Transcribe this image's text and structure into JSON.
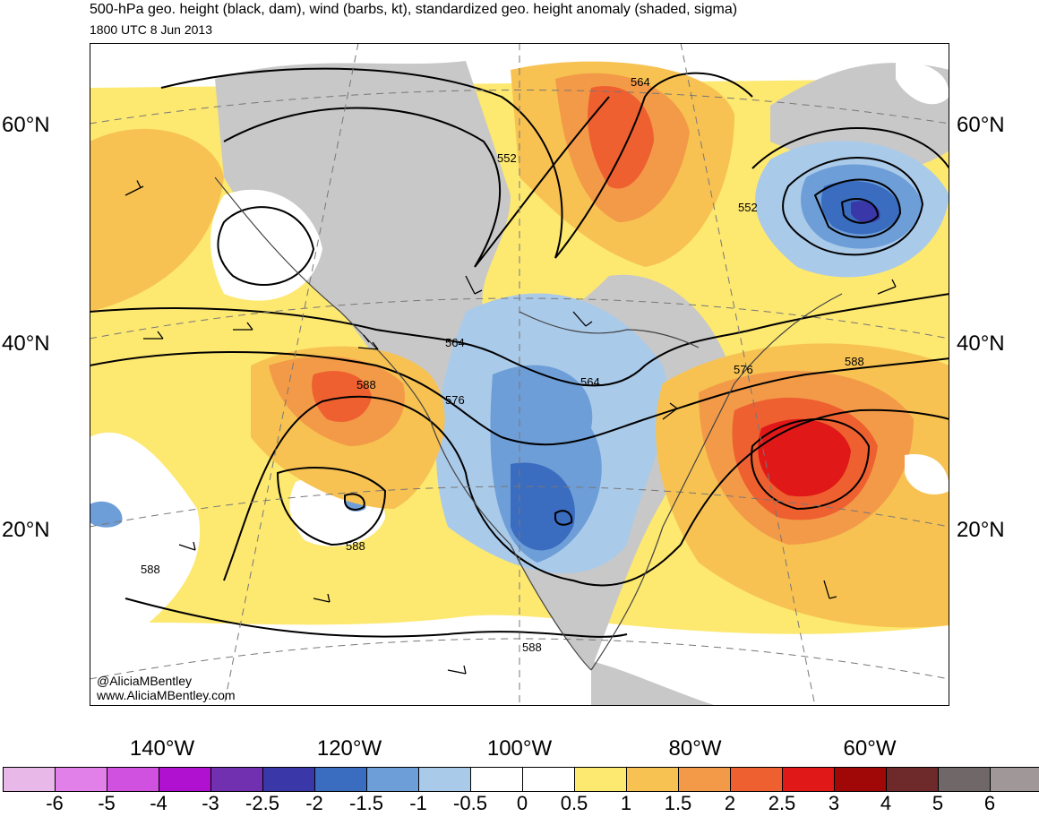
{
  "title": "500-hPa geo. height (black, dam), wind (barbs, kt), standardized geo. height anomaly (shaded, sigma)",
  "subtitle": "1800 UTC 8 Jun 2013",
  "credit": [
    "@AliciaMBentley",
    "www.AliciaMBentley.com"
  ],
  "lat_labels": [
    "60°N",
    "40°N",
    "20°N"
  ],
  "lon_labels": [
    "140°W",
    "120°W",
    "100°W",
    "80°W",
    "60°W"
  ],
  "contour_labels": [
    "564",
    "552",
    "552",
    "564",
    "576",
    "564",
    "576",
    "588",
    "588",
    "588",
    "588",
    "588"
  ],
  "colorbar": {
    "ticks": [
      "-6",
      "-5",
      "-4",
      "-3",
      "-2.5",
      "-2",
      "-1.5",
      "-1",
      "-0.5",
      "0",
      "0.5",
      "1",
      "1.5",
      "2",
      "2.5",
      "3",
      "4",
      "5",
      "6"
    ],
    "colors": [
      "#e8b8e8",
      "#e080e8",
      "#d050e0",
      "#b010d0",
      "#7030b0",
      "#3a38a8",
      "#3a6cc0",
      "#6e9ed8",
      "#aacaea",
      "#ffffff",
      "#ffffff",
      "#fde870",
      "#f7c252",
      "#f39a48",
      "#ee6030",
      "#e01818",
      "#a00808",
      "#6e2a2a",
      "#706868",
      "#a09898"
    ]
  },
  "colors": {
    "land_gray": "#c8c8c8",
    "border": "#444444"
  }
}
